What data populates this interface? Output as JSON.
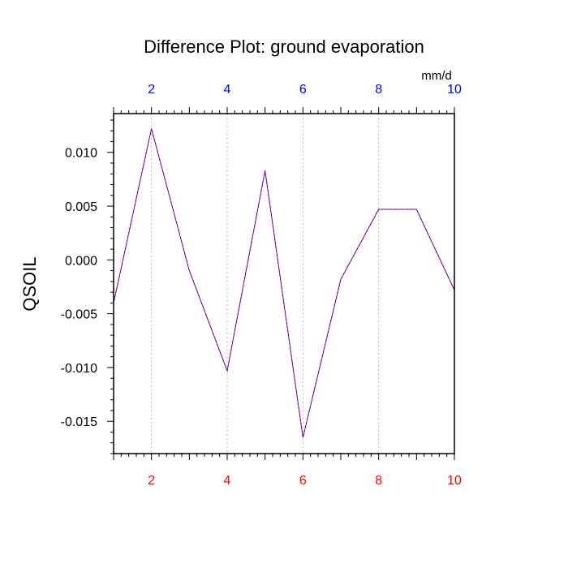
{
  "chart_data": {
    "type": "line",
    "title": "Difference Plot: ground evaporation",
    "ylabel": "QSOIL",
    "units": "mm/d",
    "x": [
      1,
      2,
      3,
      4,
      5,
      6,
      7,
      8,
      9,
      10
    ],
    "series": [
      {
        "values": [
          -0.004,
          0.0122,
          -0.001,
          -0.0103,
          0.0083,
          -0.0165,
          -0.0018,
          0.0047,
          0.0047,
          -0.0028
        ],
        "color": "#ff0000"
      },
      {
        "values": [
          -0.004,
          0.0122,
          -0.001,
          -0.0103,
          0.0083,
          -0.0165,
          -0.0018,
          0.0047,
          0.0047,
          -0.0028
        ],
        "color": "#0000ff"
      }
    ],
    "xlim": [
      1,
      10
    ],
    "ylim": [
      -0.018,
      0.0136
    ],
    "xticks": [
      2,
      4,
      6,
      8,
      10
    ],
    "xtick_labels_bottom": [
      "2",
      "4",
      "6",
      "8",
      "10"
    ],
    "xtick_labels_top": [
      "2",
      "4",
      "6",
      "8",
      "10"
    ],
    "yticks": [
      0.01,
      0.005,
      0.0,
      -0.005,
      -0.01,
      -0.015
    ],
    "ytick_labels": [
      "0.010",
      "0.005",
      "0.000",
      "-0.005",
      "-0.010",
      "-0.015"
    ],
    "grid": "vertical dashed at major x ticks",
    "bottom_axis_color": "#ff0000",
    "top_axis_color": "#0000ff"
  }
}
